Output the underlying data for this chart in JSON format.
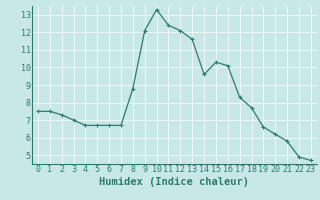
{
  "x": [
    0,
    1,
    2,
    3,
    4,
    5,
    6,
    7,
    8,
    9,
    10,
    11,
    12,
    13,
    14,
    15,
    16,
    17,
    18,
    19,
    20,
    21,
    22,
    23
  ],
  "y": [
    7.5,
    7.5,
    7.3,
    7.0,
    6.7,
    6.7,
    6.7,
    6.7,
    8.8,
    12.1,
    13.3,
    12.4,
    12.1,
    11.6,
    9.6,
    10.3,
    10.1,
    8.3,
    7.7,
    6.6,
    6.2,
    5.8,
    4.9,
    4.7
  ],
  "line_color": "#2d7a6e",
  "marker": "+",
  "marker_size": 3,
  "marker_linewidth": 0.8,
  "line_width": 0.9,
  "bg_color": "#c8e8e8",
  "grid_color": "#f0f8f8",
  "xlabel": "Humidex (Indice chaleur)",
  "xlim": [
    -0.5,
    23.5
  ],
  "ylim": [
    4.5,
    13.5
  ],
  "yticks": [
    5,
    6,
    7,
    8,
    9,
    10,
    11,
    12,
    13
  ],
  "xticks": [
    0,
    1,
    2,
    3,
    4,
    5,
    6,
    7,
    8,
    9,
    10,
    11,
    12,
    13,
    14,
    15,
    16,
    17,
    18,
    19,
    20,
    21,
    22,
    23
  ],
  "tick_label_color": "#2d7a6e",
  "tick_fontsize": 6.0,
  "label_fontsize": 7.5,
  "label_color": "#2d7a6e"
}
